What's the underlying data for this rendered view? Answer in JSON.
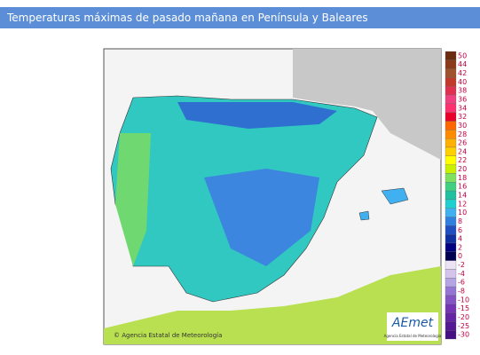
{
  "header": {
    "title": "Temperaturas máximas de pasado mañana en Península y Baleares"
  },
  "map": {
    "credit": "© Agencia Estatal de Meteorología",
    "logo": "AEmet",
    "logo_subtitle": "Agencia Estatal de Meteorología"
  },
  "legend": {
    "labels": [
      50,
      44,
      42,
      40,
      38,
      36,
      34,
      32,
      30,
      28,
      26,
      24,
      22,
      20,
      18,
      16,
      14,
      12,
      10,
      8,
      6,
      4,
      2,
      0,
      -2,
      -4,
      -6,
      -8,
      -10,
      -15,
      -20,
      -25,
      -30
    ],
    "colors": [
      "#6b2b10",
      "#8b3a1a",
      "#a0522d",
      "#c0392b",
      "#e03050",
      "#f04080",
      "#ff3070",
      "#e8002a",
      "#ff6600",
      "#ff8c00",
      "#ffb000",
      "#ffd000",
      "#ffff00",
      "#c8f000",
      "#80e060",
      "#40d080",
      "#20c0a0",
      "#20d0d0",
      "#40b0f0",
      "#3080e0",
      "#2050c0",
      "#1030a0",
      "#000080",
      "#000050",
      "#ece4f4",
      "#d4c4ec",
      "#b4a4e4",
      "#9474d4",
      "#8454c4",
      "#7434b4",
      "#6424a4",
      "#541894",
      "#441084"
    ]
  }
}
